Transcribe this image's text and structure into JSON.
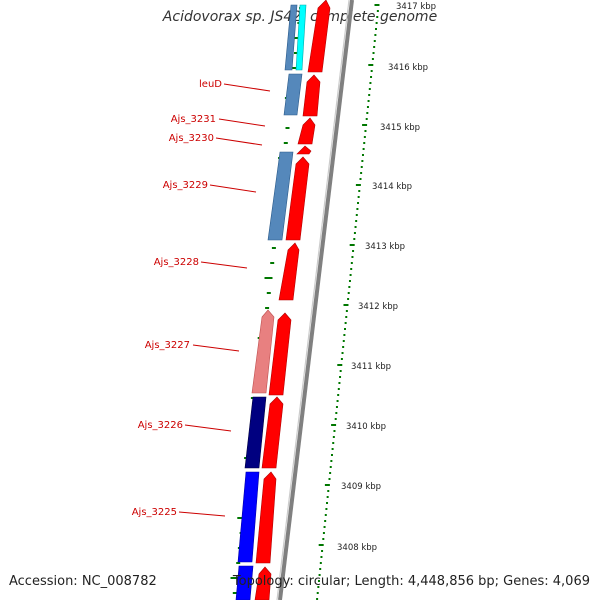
{
  "title": "Acidovorax sp. JS42, complete genome",
  "footer": {
    "accession": "Accession: NC_008782",
    "summary": "Topology: circular; Length: 4,448,856 bp; Genes: 4,069"
  },
  "colors": {
    "backbone": "#999999",
    "forward": "#ff0000",
    "forward_light": "#e88080",
    "reverse_light": "#5588bb",
    "reverse_dark": "#000080",
    "reverse_blue": "#0000ff",
    "reverse_cyan": "#00ffff",
    "ticks": "#007700",
    "labels": "#cc0000"
  },
  "scale_labels": [
    {
      "text": "3417 kbp",
      "value": 3417
    },
    {
      "text": "3416 kbp",
      "value": 3416
    },
    {
      "text": "3415 kbp",
      "value": 3415
    },
    {
      "text": "3414 kbp",
      "value": 3414
    },
    {
      "text": "3413 kbp",
      "value": 3413
    },
    {
      "text": "3412 kbp",
      "value": 3412
    },
    {
      "text": "3411 kbp",
      "value": 3411
    },
    {
      "text": "3410 kbp",
      "value": 3410
    },
    {
      "text": "3409 kbp",
      "value": 3409
    },
    {
      "text": "3408 kbp",
      "value": 3408
    }
  ],
  "gene_labels": [
    "leuD",
    "Ajs_3231",
    "Ajs_3230",
    "Ajs_3229",
    "Ajs_3228",
    "Ajs_3227",
    "Ajs_3226",
    "Ajs_3225"
  ]
}
